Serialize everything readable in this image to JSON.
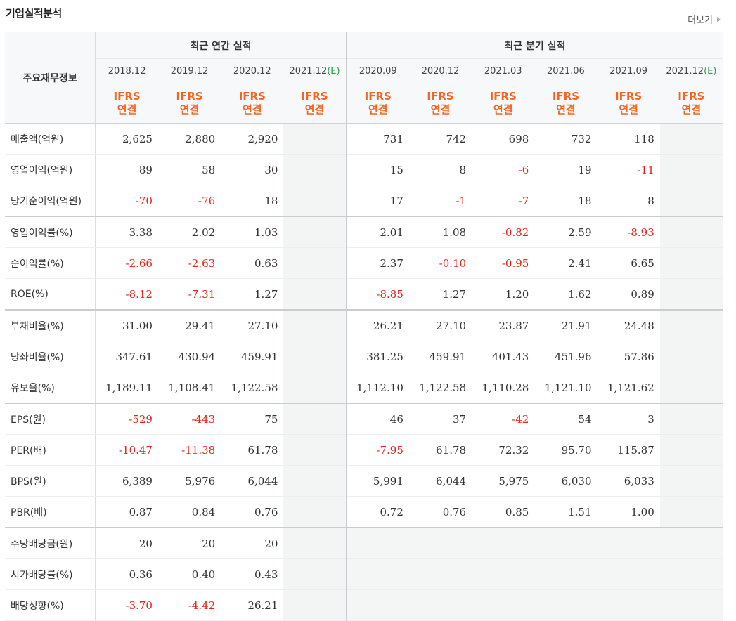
{
  "header": {
    "title": "기업실적분석",
    "more_label": "더보기"
  },
  "table": {
    "corner_label": "주요재무정보",
    "annual_header": "최근 연간 실적",
    "quarter_header": "최근 분기 실적",
    "annual_periods": [
      {
        "label": "2018.12",
        "est": ""
      },
      {
        "label": "2019.12",
        "est": ""
      },
      {
        "label": "2020.12",
        "est": ""
      },
      {
        "label": "2021.12",
        "est": "(E)"
      }
    ],
    "quarter_periods": [
      {
        "label": "2020.09",
        "est": ""
      },
      {
        "label": "2020.12",
        "est": ""
      },
      {
        "label": "2021.03",
        "est": ""
      },
      {
        "label": "2021.06",
        "est": ""
      },
      {
        "label": "2021.09",
        "est": ""
      },
      {
        "label": "2021.12",
        "est": "(E)"
      }
    ],
    "basis_line1": "IFRS",
    "basis_line2": "연결",
    "rows": [
      {
        "label": "매출액(억원)",
        "annual": [
          "2,625",
          "2,880",
          "2,920",
          ""
        ],
        "quarter": [
          "731",
          "742",
          "698",
          "732",
          "118",
          ""
        ]
      },
      {
        "label": "영업이익(억원)",
        "annual": [
          "89",
          "58",
          "30",
          ""
        ],
        "quarter": [
          "15",
          "8",
          "-6",
          "19",
          "-11",
          ""
        ]
      },
      {
        "label": "당기순이익(억원)",
        "annual": [
          "-70",
          "-76",
          "18",
          ""
        ],
        "quarter": [
          "17",
          "-1",
          "-7",
          "18",
          "8",
          ""
        ]
      },
      {
        "label": "영업이익률(%)",
        "group_start": true,
        "annual": [
          "3.38",
          "2.02",
          "1.03",
          ""
        ],
        "quarter": [
          "2.01",
          "1.08",
          "-0.82",
          "2.59",
          "-8.93",
          ""
        ]
      },
      {
        "label": "순이익률(%)",
        "annual": [
          "-2.66",
          "-2.63",
          "0.63",
          ""
        ],
        "quarter": [
          "2.37",
          "-0.10",
          "-0.95",
          "2.41",
          "6.65",
          ""
        ]
      },
      {
        "label": "ROE(%)",
        "annual": [
          "-8.12",
          "-7.31",
          "1.27",
          ""
        ],
        "quarter": [
          "-8.85",
          "1.27",
          "1.20",
          "1.62",
          "0.89",
          ""
        ]
      },
      {
        "label": "부채비율(%)",
        "group_start": true,
        "annual": [
          "31.00",
          "29.41",
          "27.10",
          ""
        ],
        "quarter": [
          "26.21",
          "27.10",
          "23.87",
          "21.91",
          "24.48",
          ""
        ]
      },
      {
        "label": "당좌비율(%)",
        "annual": [
          "347.61",
          "430.94",
          "459.91",
          ""
        ],
        "quarter": [
          "381.25",
          "459.91",
          "401.43",
          "451.96",
          "57.86",
          ""
        ]
      },
      {
        "label": "유보율(%)",
        "annual": [
          "1,189.11",
          "1,108.41",
          "1,122.58",
          ""
        ],
        "quarter": [
          "1,112.10",
          "1,122.58",
          "1,110.28",
          "1,121.10",
          "1,121.62",
          ""
        ]
      },
      {
        "label": "EPS(원)",
        "group_start": true,
        "annual": [
          "-529",
          "-443",
          "75",
          ""
        ],
        "quarter": [
          "46",
          "37",
          "-42",
          "54",
          "3",
          ""
        ]
      },
      {
        "label": "PER(배)",
        "annual": [
          "-10.47",
          "-11.38",
          "61.78",
          ""
        ],
        "quarter": [
          "-7.95",
          "61.78",
          "72.32",
          "95.70",
          "115.87",
          ""
        ]
      },
      {
        "label": "BPS(원)",
        "annual": [
          "6,389",
          "5,976",
          "6,044",
          ""
        ],
        "quarter": [
          "5,991",
          "6,044",
          "5,975",
          "6,030",
          "6,033",
          ""
        ]
      },
      {
        "label": "PBR(배)",
        "annual": [
          "0.87",
          "0.84",
          "0.76",
          ""
        ],
        "quarter": [
          "0.72",
          "0.76",
          "0.85",
          "1.51",
          "1.00",
          ""
        ]
      },
      {
        "label": "주당배당금(원)",
        "group_start": true,
        "annual": [
          "20",
          "20",
          "20",
          ""
        ],
        "quarter": [
          "",
          "",
          "",
          "",
          "",
          ""
        ],
        "quarter_blank": true
      },
      {
        "label": "시가배당률(%)",
        "annual": [
          "0.36",
          "0.40",
          "0.43",
          ""
        ],
        "quarter": [
          "",
          "",
          "",
          "",
          "",
          ""
        ],
        "quarter_blank": true
      },
      {
        "label": "배당성향(%)",
        "annual": [
          "-3.70",
          "-4.42",
          "26.21",
          ""
        ],
        "quarter": [
          "",
          "",
          "",
          "",
          "",
          ""
        ],
        "quarter_blank": true
      }
    ]
  },
  "colors": {
    "negative": "#e1251b",
    "ifrs": "#f26522",
    "estimate": "#2a9d4a"
  }
}
